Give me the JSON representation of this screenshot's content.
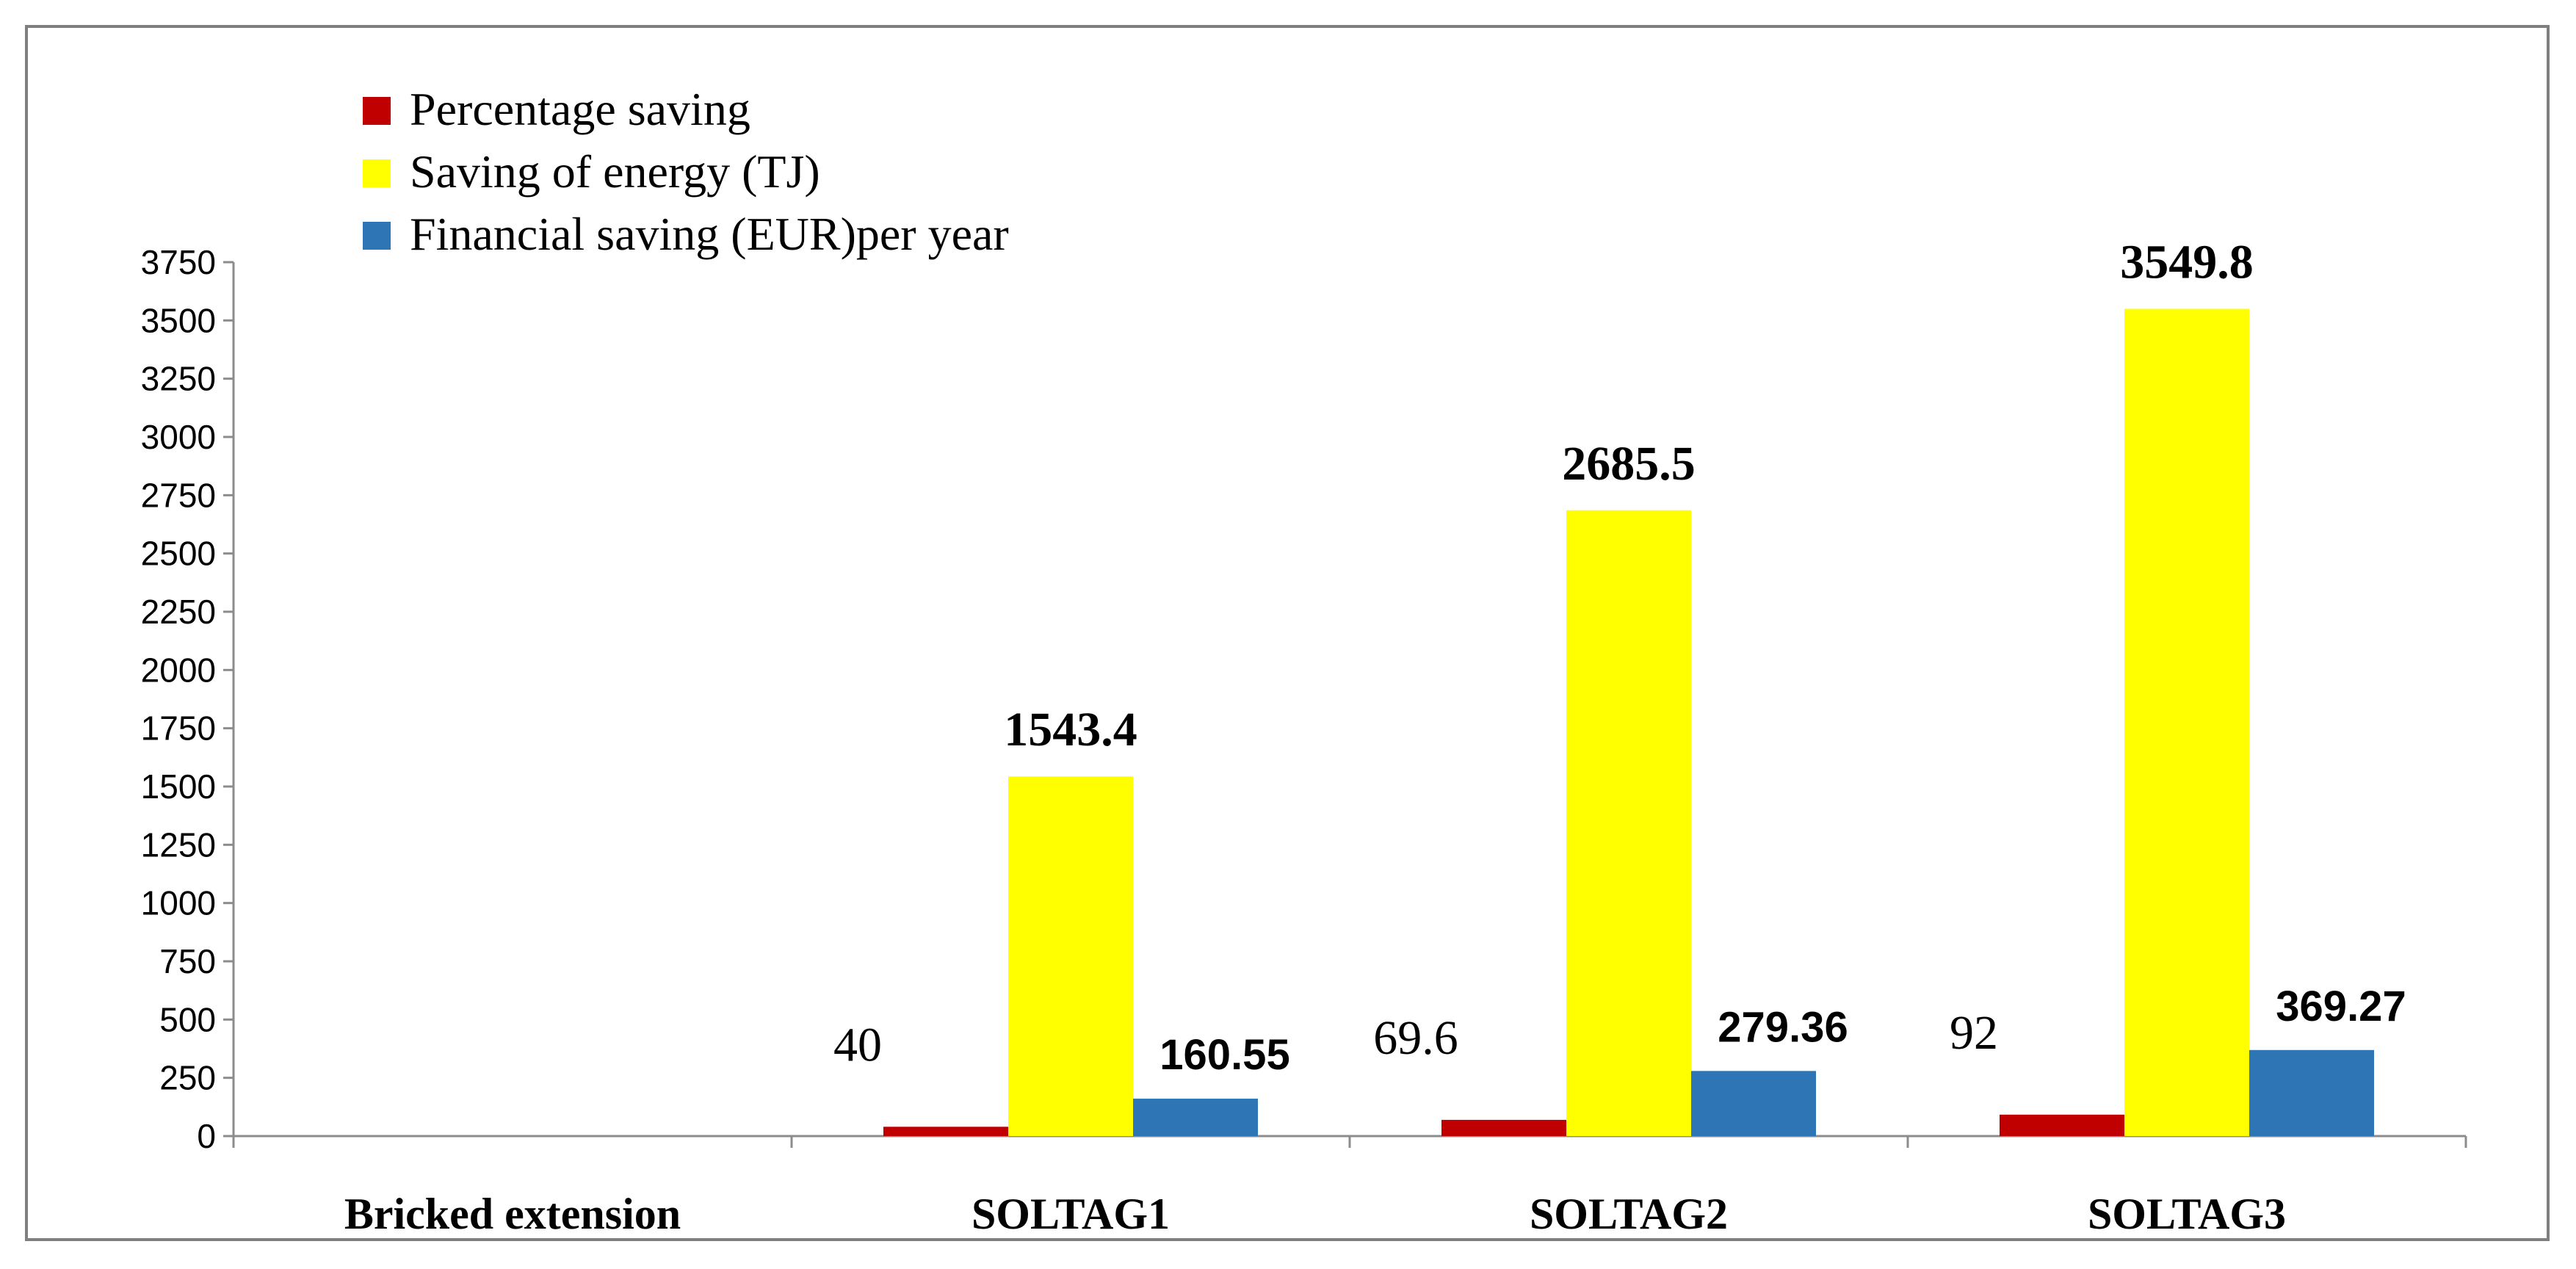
{
  "chart_data": {
    "type": "bar",
    "title": "",
    "xlabel": "",
    "ylabel": "",
    "ylim": [
      0,
      3750
    ],
    "yticks": [
      0,
      250,
      500,
      750,
      1000,
      1250,
      1500,
      1750,
      2000,
      2250,
      2500,
      2750,
      3000,
      3250,
      3500,
      3750
    ],
    "grid": false,
    "legend_position": "top-left",
    "categories": [
      "Bricked extension",
      "SOLTAG1",
      "SOLTAG2",
      "SOLTAG3"
    ],
    "series": [
      {
        "name": "Percentage saving",
        "color": "#c00000",
        "values": [
          0,
          40,
          69.6,
          92
        ],
        "labels": [
          "",
          "40",
          "69.6",
          "92"
        ]
      },
      {
        "name": "Saving of energy (TJ)",
        "color": "#ffff00",
        "values": [
          0,
          1543.4,
          2685.5,
          3549.8
        ],
        "labels": [
          "",
          "1543.4",
          "2685.5",
          "3549.8"
        ]
      },
      {
        "name": "Financial saving (EUR)per year",
        "color": "#2e75b6",
        "values": [
          0,
          160.55,
          279.36,
          369.27
        ],
        "labels": [
          "",
          "160.55",
          "279.36",
          "369.27"
        ]
      }
    ]
  }
}
